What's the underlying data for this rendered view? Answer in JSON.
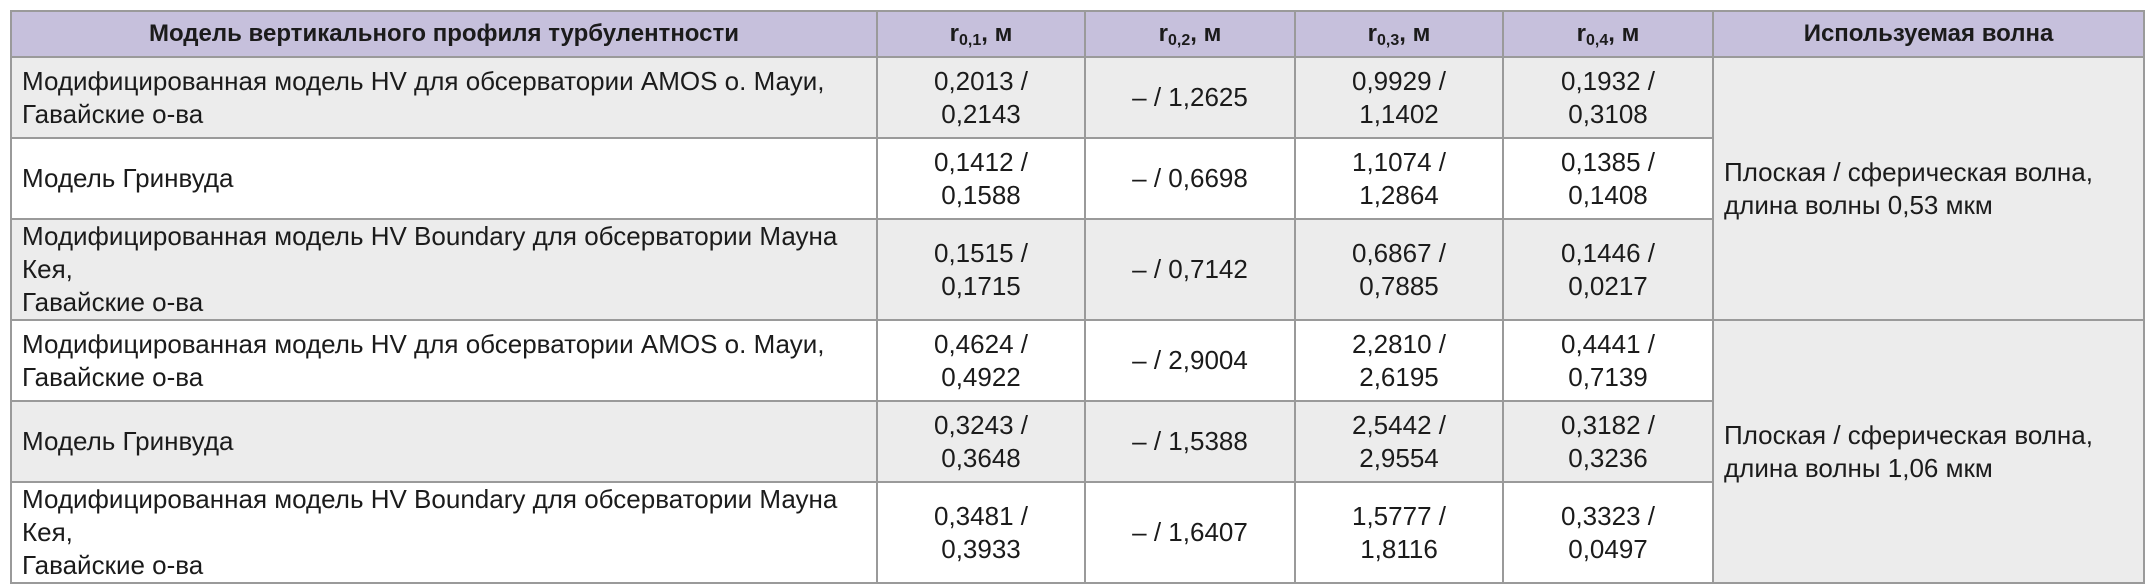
{
  "table": {
    "headers": {
      "model": "Модель вертикального профиля турбулентности",
      "r01": {
        "base": "r",
        "sub": "0,1",
        "unit": ", м"
      },
      "r02": {
        "base": "r",
        "sub": "0,2",
        "unit": ", м"
      },
      "r03": {
        "base": "r",
        "sub": "0,3",
        "unit": ", м"
      },
      "r04": {
        "base": "r",
        "sub": "0,4",
        "unit": ", м"
      },
      "wave": "Используемая волна"
    },
    "rows": [
      {
        "model": [
          "Модифицированная модель HV для обсерватории AMOS о. Мауи,",
          "Гавайские о-ва"
        ],
        "r01": [
          "0,2013 /",
          "0,2143"
        ],
        "r02": "– / 1,2625",
        "r03": [
          "0,9929 /",
          "1,1402"
        ],
        "r04": [
          "0,1932 /",
          "0,3108"
        ]
      },
      {
        "model": [
          "Модель Гринвуда"
        ],
        "r01": [
          "0,1412 /",
          "0,1588"
        ],
        "r02": "– / 0,6698",
        "r03": [
          "1,1074 /",
          "1,2864"
        ],
        "r04": [
          "0,1385 /",
          "0,1408"
        ]
      },
      {
        "model": [
          "Модифицированная модель HV Boundary для обсерватории Мауна Кея,",
          "Гавайские о-ва"
        ],
        "r01": [
          "0,1515 /",
          "0,1715"
        ],
        "r02": "– / 0,7142",
        "r03": [
          "0,6867 /",
          "0,7885"
        ],
        "r04": [
          "0,1446 /",
          "0,0217"
        ]
      },
      {
        "model": [
          "Модифицированная модель HV для обсерватории AMOS о. Мауи,",
          "Гавайские о-ва"
        ],
        "r01": [
          "0,4624 /",
          "0,4922"
        ],
        "r02": "– / 2,9004",
        "r03": [
          "2,2810 /",
          "2,6195"
        ],
        "r04": [
          "0,4441 /",
          "0,7139"
        ]
      },
      {
        "model": [
          "Модель Гринвуда"
        ],
        "r01": [
          "0,3243 /",
          "0,3648"
        ],
        "r02": "– / 1,5388",
        "r03": [
          "2,5442 /",
          "2,9554"
        ],
        "r04": [
          "0,3182 /",
          "0,3236"
        ]
      },
      {
        "model": [
          "Модифицированная модель HV Boundary для обсерватории Мауна Кея,",
          "Гавайские о-ва"
        ],
        "r01": [
          "0,3481 /",
          "0,3933"
        ],
        "r02": "– / 1,6407",
        "r03": [
          "1,5777 /",
          "1,8116"
        ],
        "r04": [
          "0,3323 /",
          "0,0497"
        ]
      }
    ],
    "wave_groups": [
      [
        "Плоская / сферическая волна,",
        "длина волны 0,53 мкм"
      ],
      [
        "Плоская / сферическая волна,",
        "длина волны 1,06 мкм"
      ]
    ],
    "colors": {
      "header_bg": "#c6c0dc",
      "shaded_row_bg": "#ececec",
      "border": "#9a9a9a"
    }
  }
}
